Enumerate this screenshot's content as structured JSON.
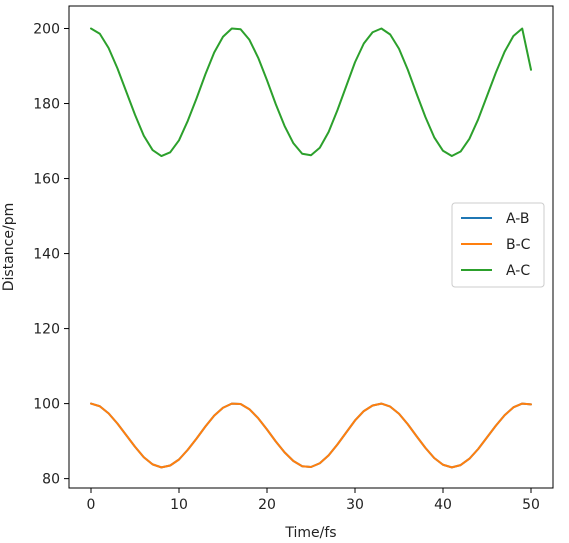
{
  "chart_data": {
    "type": "line",
    "xlabel": "Time/fs",
    "ylabel": "Distance/pm",
    "xlim": [
      -2.5,
      52.5
    ],
    "ylim": [
      77.5,
      206
    ],
    "xticks": [
      0,
      10,
      20,
      30,
      40,
      50
    ],
    "yticks": [
      80,
      100,
      120,
      140,
      160,
      180,
      200
    ],
    "x": [
      0,
      1,
      2,
      3,
      4,
      5,
      6,
      7,
      8,
      9,
      10,
      11,
      12,
      13,
      14,
      15,
      16,
      17,
      18,
      19,
      20,
      21,
      22,
      23,
      24,
      25,
      26,
      27,
      28,
      29,
      30,
      31,
      32,
      33,
      34,
      35,
      36,
      37,
      38,
      39,
      40,
      41,
      42,
      43,
      44,
      45,
      46,
      47,
      48,
      49,
      50
    ],
    "series": [
      {
        "name": "A-B",
        "color": "#1f77b4",
        "values": [
          100.0,
          99.3,
          97.4,
          94.7,
          91.6,
          88.5,
          85.7,
          83.8,
          83.0,
          83.5,
          85.1,
          87.7,
          90.7,
          93.9,
          96.8,
          98.9,
          100.0,
          99.9,
          98.5,
          96.1,
          93.1,
          89.9,
          87.0,
          84.7,
          83.3,
          83.1,
          84.1,
          86.2,
          89.1,
          92.3,
          95.5,
          98.0,
          99.5,
          100.0,
          99.2,
          97.3,
          94.5,
          91.3,
          88.2,
          85.5,
          83.7,
          83.0,
          83.6,
          85.3,
          87.9,
          91.0,
          94.1,
          96.9,
          99.0,
          100.0,
          99.8
        ]
      },
      {
        "name": "B-C",
        "color": "#ff7f0e",
        "values": [
          100.0,
          99.3,
          97.4,
          94.7,
          91.6,
          88.5,
          85.7,
          83.8,
          83.0,
          83.5,
          85.1,
          87.7,
          90.7,
          93.9,
          96.8,
          98.9,
          100.0,
          99.9,
          98.5,
          96.1,
          93.1,
          89.9,
          87.0,
          84.7,
          83.3,
          83.1,
          84.1,
          86.2,
          89.1,
          92.3,
          95.5,
          98.0,
          99.5,
          100.0,
          99.2,
          97.3,
          94.5,
          91.3,
          88.2,
          85.5,
          83.7,
          83.0,
          83.6,
          85.3,
          87.9,
          91.0,
          94.1,
          96.9,
          99.0,
          100.0,
          99.8
        ]
      },
      {
        "name": "A-C",
        "color": "#2ca02c",
        "values": [
          200.0,
          198.6,
          194.8,
          189.4,
          183.2,
          177.0,
          171.4,
          167.6,
          166.0,
          167.0,
          170.2,
          175.4,
          181.4,
          187.8,
          193.6,
          197.8,
          200.0,
          199.8,
          197.0,
          192.2,
          186.2,
          179.8,
          174.0,
          169.4,
          166.6,
          166.2,
          168.2,
          172.4,
          178.2,
          184.6,
          191.0,
          196.0,
          199.0,
          200.0,
          198.4,
          194.6,
          189.0,
          182.6,
          176.4,
          171.0,
          167.4,
          166.0,
          167.2,
          170.6,
          175.8,
          182.0,
          188.2,
          193.8,
          198.0,
          200.0,
          189.0
        ]
      }
    ],
    "legend": {
      "position": "center-right",
      "entries": [
        "A-B",
        "B-C",
        "A-C"
      ]
    },
    "grid": false
  }
}
